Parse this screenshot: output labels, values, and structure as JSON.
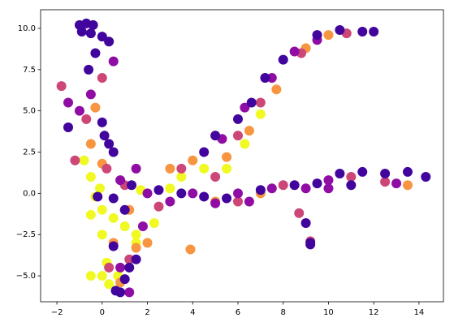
{
  "chart_data": {
    "type": "scatter",
    "xlim": [
      -2.72,
      15.08
    ],
    "ylim": [
      -6.57,
      11.13
    ],
    "xticks": [
      {
        "value": -2,
        "label": "−2"
      },
      0,
      2,
      4,
      6,
      8,
      10,
      12,
      14
    ],
    "yticks": [
      {
        "value": -5,
        "label": "−5.0"
      },
      {
        "value": -2.5,
        "label": "−2.5"
      },
      {
        "value": 0,
        "label": "0.0"
      },
      {
        "value": 2.5,
        "label": "2.5"
      },
      {
        "value": 5,
        "label": "5.0"
      },
      {
        "value": 7.5,
        "label": "7.5"
      },
      {
        "value": 10,
        "label": "10.0"
      }
    ],
    "series": [
      {
        "color": "#f0f921",
        "x": [
          -0.8,
          -0.5,
          -0.3,
          0,
          0.5,
          1,
          1.5,
          0,
          -0.5,
          1.5,
          0.2,
          0,
          -0.5,
          0.3,
          0.7,
          3,
          3.5,
          4.5,
          5.5,
          6.3,
          7,
          2.3,
          1.7,
          -0.1
        ],
        "y": [
          2,
          1,
          -0.2,
          -1,
          -1.5,
          -2,
          -2.5,
          -2.5,
          -1.3,
          -3,
          -4.2,
          -5,
          -5,
          -5.5,
          -5,
          0.3,
          1,
          1.5,
          1.5,
          3,
          4.8,
          -1.8,
          0.2,
          0.3
        ]
      },
      {
        "color": "#f89540",
        "x": [
          -0.5,
          0,
          3,
          4,
          5.5,
          6.5,
          7.7,
          9,
          10,
          3.9,
          2,
          1.5,
          0.5,
          5,
          7,
          13.5,
          0.8,
          -0.3,
          1.2
        ],
        "y": [
          3,
          1.8,
          1.5,
          2,
          2.2,
          3.8,
          6.3,
          8.8,
          9.6,
          -3.4,
          -3,
          -3.3,
          -3,
          -0.5,
          0,
          0.5,
          -5.4,
          5.2,
          -1
        ]
      },
      {
        "color": "#cc4778",
        "x": [
          -1.8,
          -0.7,
          0,
          1,
          2.5,
          3.5,
          5,
          6,
          7,
          8.8,
          10.8,
          12.5,
          11,
          8,
          6,
          1.2,
          0.3,
          8.7,
          -1.2,
          0.2,
          9.2
        ],
        "y": [
          6.5,
          4.5,
          7,
          0.5,
          -0.8,
          1.5,
          1,
          3.5,
          5.5,
          8.5,
          9.7,
          0.7,
          1,
          0.5,
          -0.5,
          -4,
          -4.5,
          -1.2,
          2,
          1.5,
          -2.9
        ]
      },
      {
        "color": "#8f0da4",
        "x": [
          -1.5,
          -1,
          -0.5,
          0.5,
          2,
          3,
          4,
          6,
          7.5,
          9,
          10,
          13,
          8.5,
          9.5,
          7.5,
          6.3,
          5.3,
          0.8,
          1.8,
          1.5,
          0.8,
          1.2,
          10,
          5,
          6.5
        ],
        "y": [
          5.5,
          5,
          6,
          8,
          0,
          -0.5,
          0,
          0,
          0.3,
          0.3,
          0.8,
          0.6,
          8.6,
          9.3,
          7,
          5.2,
          3.3,
          -4.5,
          -2,
          1.5,
          0.8,
          -6,
          0.3,
          -0.6,
          -0.5
        ]
      },
      {
        "color": "#41049d",
        "x": [
          -1,
          -0.7,
          -0.4,
          -0.9,
          -0.5,
          0,
          0.3,
          -0.3,
          -0.6,
          0,
          0.1,
          0.3,
          0.5,
          0.8,
          0.6,
          1,
          1.2,
          1.5,
          0.5,
          1,
          3.5,
          4.5,
          5.5,
          7,
          8.5,
          9.5,
          10.5,
          11.5,
          12.5,
          13.5,
          14.3,
          11,
          12,
          11.5,
          10.5,
          9.5,
          8,
          7.2,
          6.6,
          6,
          5,
          4.5,
          9.2,
          9.2,
          9,
          0.5,
          -0.2,
          2.5,
          1.3,
          -1.5
        ],
        "y": [
          10.2,
          10.3,
          10.2,
          9.8,
          9.7,
          9.5,
          9.2,
          8.5,
          7.5,
          4.3,
          3.5,
          3,
          2.5,
          -6,
          -5.9,
          -5.2,
          -4.5,
          -4,
          -3.2,
          -1,
          0,
          -0.2,
          -0.3,
          0.2,
          0.5,
          0.6,
          1.2,
          1.3,
          1.2,
          1.3,
          1,
          0.5,
          9.8,
          9.8,
          9.9,
          9.6,
          8.1,
          7,
          5.5,
          4.5,
          3.5,
          2.5,
          -3,
          -3.1,
          -1.8,
          -0.3,
          -0.2,
          0.2,
          0.5,
          4
        ]
      }
    ]
  }
}
